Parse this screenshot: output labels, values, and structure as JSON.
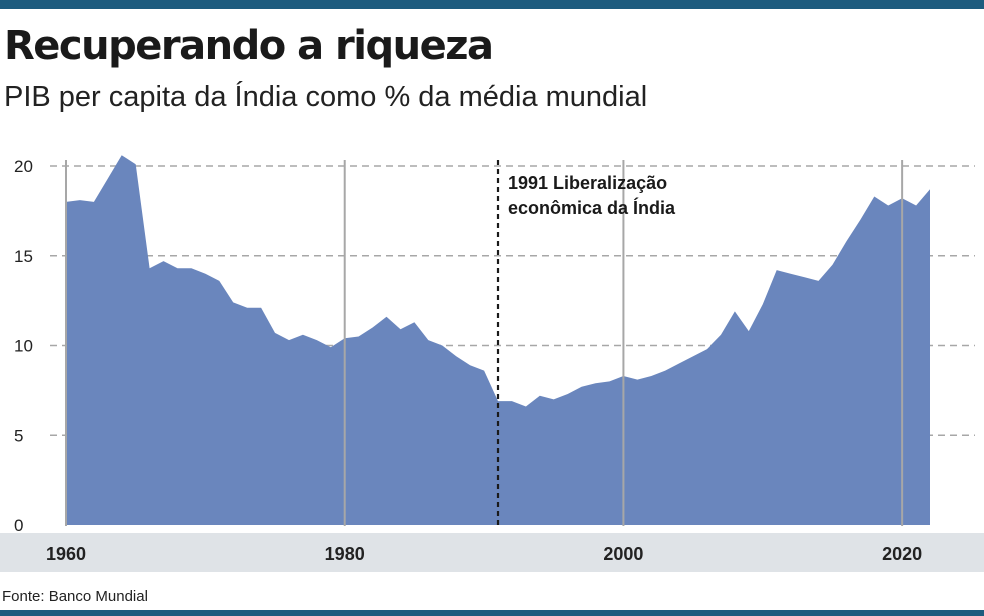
{
  "header": {
    "title": "Recuperando a riqueza",
    "subtitle": "PIB per capita da Índia como % da média mundial"
  },
  "footer": {
    "source": "Fonte: Banco Mundial"
  },
  "colors": {
    "area": "#6a86bd",
    "band": "#dfe3e7",
    "bar": "#1d5b7e",
    "grid": "#a7a7a7",
    "text": "#222222"
  },
  "chart_data": {
    "type": "area",
    "title": "Recuperando a riqueza",
    "subtitle": "PIB per capita da Índia como % da média mundial",
    "xlabel": "",
    "ylabel": "",
    "xlim": [
      1960,
      2022
    ],
    "ylim": [
      0,
      20
    ],
    "y_ticks": [
      0,
      5,
      10,
      15,
      20
    ],
    "x_ticks": [
      1960,
      1980,
      2000,
      2020
    ],
    "grid": {
      "horizontal": "dashed",
      "vertical": "solid"
    },
    "annotation": {
      "x": 1991,
      "lines": [
        "1991 Liberalização",
        "econômica da Índia"
      ]
    },
    "series": [
      {
        "x": [
          1960,
          1961,
          1962,
          1963,
          1964,
          1965,
          1966,
          1967,
          1968,
          1969,
          1970,
          1971,
          1972,
          1973,
          1974,
          1975,
          1976,
          1977,
          1978,
          1979,
          1980,
          1981,
          1982,
          1983,
          1984,
          1985,
          1986,
          1987,
          1988,
          1989,
          1990,
          1991,
          1992,
          1993,
          1994,
          1995,
          1996,
          1997,
          1998,
          1999,
          2000,
          2001,
          2002,
          2003,
          2004,
          2005,
          2006,
          2007,
          2008,
          2009,
          2010,
          2011,
          2012,
          2013,
          2014,
          2015,
          2016,
          2017,
          2018,
          2019,
          2020,
          2021,
          2022
        ],
        "values": [
          18.0,
          18.1,
          18.0,
          19.3,
          20.6,
          20.1,
          14.3,
          14.7,
          14.3,
          14.3,
          14.0,
          13.6,
          12.4,
          12.1,
          12.1,
          10.7,
          10.3,
          10.6,
          10.3,
          9.9,
          10.4,
          10.5,
          11.0,
          11.6,
          10.9,
          11.3,
          10.3,
          10.0,
          9.4,
          8.9,
          8.6,
          6.9,
          6.9,
          6.6,
          7.2,
          7.0,
          7.3,
          7.7,
          7.9,
          8.0,
          8.3,
          8.1,
          8.3,
          8.6,
          9.0,
          9.4,
          9.8,
          10.6,
          11.9,
          10.8,
          12.3,
          14.2,
          14.0,
          13.8,
          13.6,
          14.5,
          15.8,
          17.0,
          18.3,
          17.8,
          18.2,
          17.8,
          18.7
        ]
      }
    ]
  }
}
